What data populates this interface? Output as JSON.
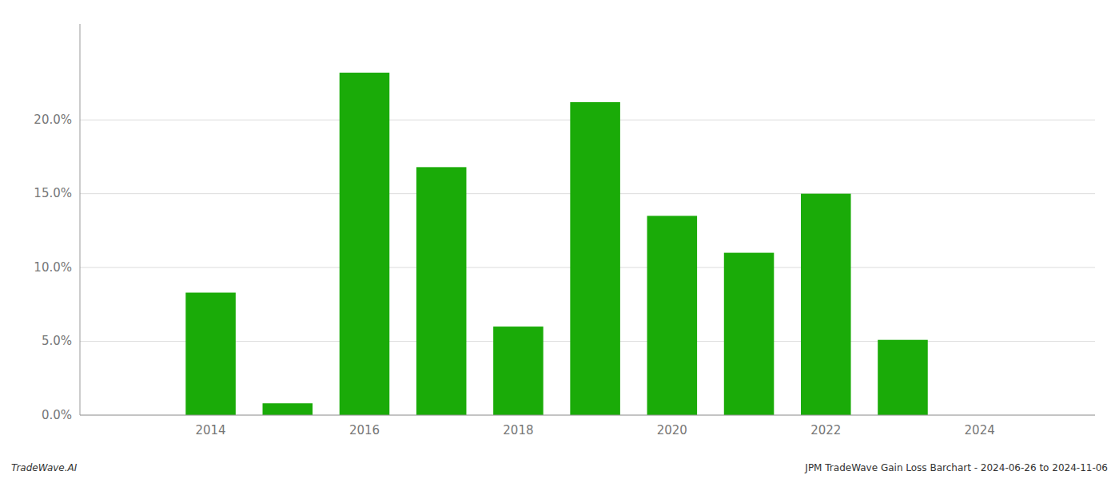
{
  "chart_data": {
    "type": "bar",
    "x": [
      2013,
      2014,
      2015,
      2016,
      2017,
      2018,
      2019,
      2020,
      2021,
      2022,
      2023,
      2024
    ],
    "values": [
      null,
      0.083,
      0.008,
      0.232,
      0.168,
      0.06,
      0.212,
      0.135,
      0.11,
      0.15,
      0.051,
      null
    ],
    "color": "#1aab08",
    "xlim": [
      2012.3,
      2025.5
    ],
    "xticks": [
      2014,
      2016,
      2018,
      2020,
      2022,
      2024
    ],
    "ylim": [
      0,
      0.265
    ],
    "yticks": [
      {
        "value": 0.0,
        "label": "0.0%"
      },
      {
        "value": 0.05,
        "label": "5.0%"
      },
      {
        "value": 0.1,
        "label": "10.0%"
      },
      {
        "value": 0.15,
        "label": "15.0%"
      },
      {
        "value": 0.2,
        "label": "20.0%"
      }
    ],
    "grid": true,
    "annotations": [
      "TradeWave.AI",
      "JPM TradeWave Gain Loss Barchart - 2024-06-26 to 2024-11-06"
    ]
  }
}
